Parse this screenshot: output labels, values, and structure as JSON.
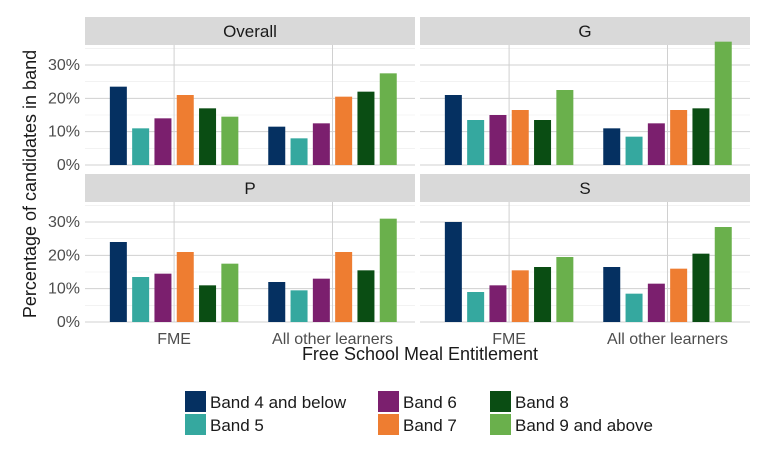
{
  "chart_data": {
    "type": "bar",
    "xlabel": "Free School Meal Entitlement",
    "ylabel": "Percentage of candidates in band",
    "categories": [
      "FME",
      "All other learners"
    ],
    "y_ticks": [
      "0%",
      "10%",
      "20%",
      "30%"
    ],
    "ylim": [
      0,
      36
    ],
    "grid": true,
    "legend_position": "bottom",
    "series": [
      {
        "name": "Band 4 and below",
        "color": "#053061"
      },
      {
        "name": "Band 5",
        "color": "#35a89f"
      },
      {
        "name": "Band 6",
        "color": "#7b1f6e"
      },
      {
        "name": "Band 7",
        "color": "#ee7d31"
      },
      {
        "name": "Band 8",
        "color": "#0a4d13"
      },
      {
        "name": "Band 9 and above",
        "color": "#6ab04c"
      }
    ],
    "panels": [
      {
        "title": "Overall",
        "values": {
          "FME": [
            23.5,
            11,
            14,
            21,
            17,
            14.5
          ],
          "All other learners": [
            11.5,
            8,
            12.5,
            20.5,
            22,
            27.5
          ]
        }
      },
      {
        "title": "G",
        "values": {
          "FME": [
            21,
            13.5,
            15,
            16.5,
            13.5,
            22.5
          ],
          "All other learners": [
            11,
            8.5,
            12.5,
            16.5,
            17,
            37
          ]
        }
      },
      {
        "title": "P",
        "values": {
          "FME": [
            24,
            13.5,
            14.5,
            21,
            11,
            17.5
          ],
          "All other learners": [
            12,
            9.5,
            13,
            21,
            15.5,
            31
          ]
        }
      },
      {
        "title": "S",
        "values": {
          "FME": [
            30,
            9,
            11,
            15.5,
            16.5,
            19.5
          ],
          "All other learners": [
            16.5,
            8.5,
            11.5,
            16,
            20.5,
            28.5
          ]
        }
      }
    ]
  }
}
